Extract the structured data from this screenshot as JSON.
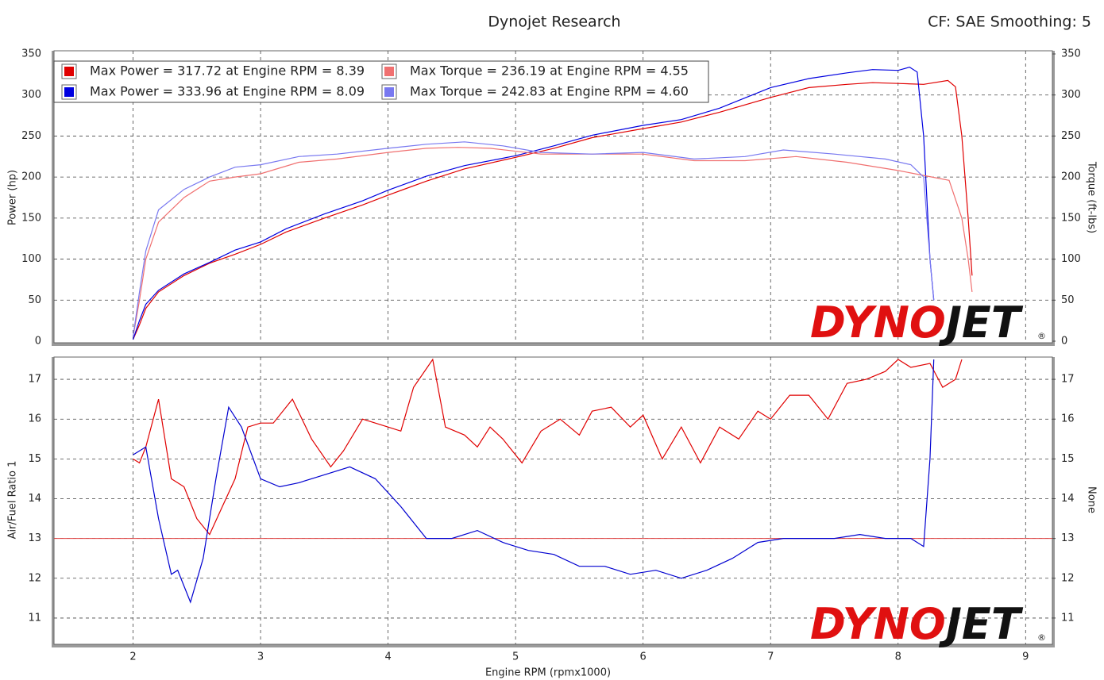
{
  "chart_data": [
    {
      "type": "line",
      "title": "Dynojet Research",
      "subtitle": "CF: SAE Smoothing: 5",
      "y_label": "Power (hp)",
      "y2_label": "Torque (ft-lbs)",
      "xlim": [
        1.38,
        9.21
      ],
      "ylim": [
        0,
        350
      ],
      "yticks": [
        0,
        50,
        100,
        150,
        200,
        250,
        300,
        350
      ],
      "y2lim": [
        0,
        350
      ],
      "y2ticks": [
        0,
        50,
        100,
        150,
        200,
        250,
        300,
        350
      ],
      "grid": true,
      "legend": "upper left",
      "logo": [
        "DYNO",
        "JET",
        "®"
      ],
      "series": [
        {
          "name": "Max Power = 317.72 at Engine RPM = 8.39",
          "color": "#e00000",
          "x": [
            2.0,
            2.05,
            2.1,
            2.2,
            2.4,
            2.6,
            2.8,
            3.0,
            3.2,
            3.5,
            3.8,
            4.0,
            4.3,
            4.6,
            5.0,
            5.3,
            5.6,
            6.0,
            6.3,
            6.6,
            7.0,
            7.3,
            7.6,
            7.8,
            8.0,
            8.2,
            8.39,
            8.45,
            8.5,
            8.55,
            8.58
          ],
          "values": [
            2,
            20,
            40,
            60,
            80,
            95,
            106,
            118,
            133,
            150,
            166,
            178,
            195,
            210,
            224,
            235,
            248,
            259,
            267,
            279,
            297,
            309,
            313,
            315,
            314,
            313,
            317.72,
            310,
            250,
            150,
            80
          ]
        },
        {
          "name": "Max Power = 333.96 at Engine RPM = 8.09",
          "color": "#0000e0",
          "x": [
            2.0,
            2.05,
            2.1,
            2.2,
            2.4,
            2.6,
            2.8,
            3.0,
            3.2,
            3.5,
            3.8,
            4.0,
            4.3,
            4.6,
            5.0,
            5.3,
            5.6,
            6.0,
            6.3,
            6.6,
            7.0,
            7.3,
            7.6,
            7.8,
            8.0,
            8.09,
            8.15,
            8.2,
            8.25,
            8.28
          ],
          "values": [
            2,
            25,
            45,
            62,
            82,
            96,
            111,
            121,
            137,
            155,
            171,
            184,
            201,
            214,
            226,
            238,
            251,
            263,
            270,
            284,
            309,
            320,
            327,
            331,
            330,
            333.96,
            328,
            250,
            100,
            50
          ]
        },
        {
          "name": "Max Torque = 236.19 at Engine RPM = 4.55",
          "color": "#f07070",
          "axis": "y2",
          "x": [
            2.0,
            2.05,
            2.1,
            2.2,
            2.4,
            2.6,
            2.8,
            3.0,
            3.3,
            3.6,
            4.0,
            4.3,
            4.55,
            4.8,
            5.2,
            5.6,
            6.0,
            6.4,
            6.8,
            7.2,
            7.6,
            8.0,
            8.2,
            8.4,
            8.5,
            8.55,
            8.58
          ],
          "values": [
            5,
            50,
            100,
            145,
            175,
            195,
            200,
            204,
            218,
            222,
            230,
            235,
            236.19,
            235,
            228,
            228,
            228,
            220,
            220,
            225,
            218,
            208,
            202,
            196,
            150,
            100,
            60
          ]
        },
        {
          "name": "Max Torque = 242.83 at Engine RPM = 4.60",
          "color": "#7878f0",
          "axis": "y2",
          "x": [
            2.0,
            2.05,
            2.1,
            2.2,
            2.4,
            2.6,
            2.8,
            3.0,
            3.3,
            3.6,
            4.0,
            4.3,
            4.6,
            4.9,
            5.2,
            5.6,
            6.0,
            6.4,
            6.8,
            7.1,
            7.5,
            7.9,
            8.1,
            8.2,
            8.25,
            8.28
          ],
          "values": [
            5,
            60,
            110,
            160,
            185,
            200,
            212,
            215,
            225,
            228,
            235,
            240,
            242.83,
            238,
            230,
            228,
            230,
            222,
            225,
            233,
            228,
            222,
            215,
            200,
            100,
            50
          ]
        }
      ]
    },
    {
      "type": "line",
      "y_label": "Air/Fuel Ratio 1",
      "y2_label": "None",
      "x_label": "Engine RPM (rpmx1000)",
      "xlim": [
        1.38,
        9.21
      ],
      "xticks": [
        2,
        3,
        4,
        5,
        6,
        7,
        8,
        9
      ],
      "ylim": [
        10.38,
        17.56
      ],
      "yticks": [
        11,
        12,
        13,
        14,
        15,
        16,
        17
      ],
      "y2lim": [
        10.38,
        17.56
      ],
      "y2ticks": [
        11,
        12,
        13,
        14,
        15,
        16,
        17
      ],
      "grid": true,
      "logo": [
        "DYNO",
        "JET",
        "®"
      ],
      "reference_line": {
        "value": 13,
        "color": "#e04040"
      },
      "series": [
        {
          "color": "#e00000",
          "x": [
            2.0,
            2.05,
            2.1,
            2.2,
            2.3,
            2.4,
            2.5,
            2.6,
            2.7,
            2.8,
            2.9,
            3.0,
            3.1,
            3.25,
            3.4,
            3.55,
            3.65,
            3.8,
            4.0,
            4.1,
            4.2,
            4.35,
            4.45,
            4.6,
            4.7,
            4.8,
            4.9,
            5.05,
            5.2,
            5.35,
            5.5,
            5.6,
            5.75,
            5.9,
            6.0,
            6.15,
            6.3,
            6.45,
            6.6,
            6.75,
            6.9,
            7.0,
            7.15,
            7.3,
            7.45,
            7.6,
            7.75,
            7.9,
            8.0,
            8.1,
            8.25,
            8.35,
            8.45,
            8.5
          ],
          "values": [
            15.0,
            14.9,
            15.3,
            16.5,
            14.5,
            14.3,
            13.5,
            13.1,
            13.8,
            14.5,
            15.8,
            15.9,
            15.9,
            16.5,
            15.5,
            14.8,
            15.2,
            16.0,
            15.8,
            15.7,
            16.8,
            17.5,
            15.8,
            15.6,
            15.3,
            15.8,
            15.5,
            14.9,
            15.7,
            16.0,
            15.6,
            16.2,
            16.3,
            15.8,
            16.1,
            15.0,
            15.8,
            14.9,
            15.8,
            15.5,
            16.2,
            16.0,
            16.6,
            16.6,
            16.0,
            16.9,
            17.0,
            17.2,
            17.5,
            17.3,
            17.4,
            16.8,
            17.0,
            17.5
          ]
        },
        {
          "color": "#0000d0",
          "x": [
            2.0,
            2.05,
            2.1,
            2.2,
            2.3,
            2.35,
            2.45,
            2.55,
            2.65,
            2.75,
            2.85,
            3.0,
            3.15,
            3.3,
            3.5,
            3.7,
            3.9,
            4.1,
            4.3,
            4.5,
            4.7,
            4.9,
            5.1,
            5.3,
            5.5,
            5.7,
            5.9,
            6.1,
            6.3,
            6.5,
            6.7,
            6.9,
            7.1,
            7.3,
            7.5,
            7.7,
            7.9,
            8.1,
            8.2,
            8.25,
            8.28
          ],
          "values": [
            15.1,
            15.2,
            15.3,
            13.5,
            12.1,
            12.2,
            11.4,
            12.5,
            14.5,
            16.3,
            15.8,
            14.5,
            14.3,
            14.4,
            14.6,
            14.8,
            14.5,
            13.8,
            13.0,
            13.0,
            13.2,
            12.9,
            12.7,
            12.6,
            12.3,
            12.3,
            12.1,
            12.2,
            12.0,
            12.2,
            12.5,
            12.9,
            13.0,
            13.0,
            13.0,
            13.1,
            13.0,
            13.0,
            12.8,
            15.0,
            17.5
          ]
        }
      ]
    }
  ]
}
